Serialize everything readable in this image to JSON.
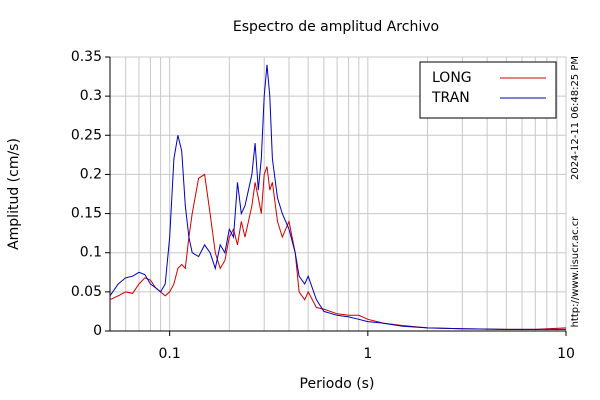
{
  "chart_data": {
    "type": "line",
    "title": "Espectro de amplitud Archivo",
    "x_label": "Periodo (s)",
    "y_label": "Amplitud (cm/s)",
    "side_texts": [
      "2024-12-11 06:48:25 PM",
      "http://www.lisucr.ac.cr"
    ],
    "x": [
      0.05,
      0.055,
      0.06,
      0.065,
      0.07,
      0.075,
      0.08,
      0.085,
      0.09,
      0.095,
      0.1,
      0.105,
      0.11,
      0.115,
      0.12,
      0.125,
      0.13,
      0.14,
      0.15,
      0.16,
      0.17,
      0.18,
      0.19,
      0.2,
      0.21,
      0.22,
      0.23,
      0.24,
      0.26,
      0.27,
      0.28,
      0.29,
      0.3,
      0.31,
      0.32,
      0.33,
      0.35,
      0.37,
      0.4,
      0.43,
      0.45,
      0.48,
      0.5,
      0.55,
      0.6,
      0.7,
      0.8,
      0.9,
      1,
      1.2,
      1.5,
      2,
      3,
      5,
      7,
      10
    ],
    "series": [
      {
        "name": "LONG",
        "color": "#cc0000",
        "values": [
          0.04,
          0.045,
          0.05,
          0.048,
          0.06,
          0.068,
          0.065,
          0.055,
          0.05,
          0.045,
          0.05,
          0.06,
          0.08,
          0.085,
          0.08,
          0.12,
          0.15,
          0.195,
          0.2,
          0.15,
          0.1,
          0.08,
          0.09,
          0.12,
          0.13,
          0.11,
          0.14,
          0.12,
          0.16,
          0.19,
          0.17,
          0.15,
          0.2,
          0.21,
          0.18,
          0.19,
          0.14,
          0.12,
          0.14,
          0.1,
          0.05,
          0.04,
          0.05,
          0.03,
          0.028,
          0.022,
          0.02,
          0.02,
          0.015,
          0.01,
          0.007,
          0.004,
          0.003,
          0.002,
          0.002,
          0.004
        ]
      },
      {
        "name": "TRAN",
        "color": "#0000bb",
        "values": [
          0.045,
          0.06,
          0.068,
          0.07,
          0.075,
          0.072,
          0.06,
          0.055,
          0.05,
          0.06,
          0.12,
          0.22,
          0.25,
          0.23,
          0.16,
          0.12,
          0.1,
          0.095,
          0.11,
          0.1,
          0.08,
          0.11,
          0.1,
          0.13,
          0.12,
          0.19,
          0.15,
          0.16,
          0.2,
          0.24,
          0.18,
          0.22,
          0.3,
          0.34,
          0.3,
          0.22,
          0.17,
          0.15,
          0.13,
          0.1,
          0.07,
          0.06,
          0.07,
          0.04,
          0.025,
          0.02,
          0.018,
          0.015,
          0.012,
          0.01,
          0.006,
          0.004,
          0.003,
          0.002,
          0.002,
          0.002
        ]
      }
    ],
    "xlim": [
      0.05,
      10
    ],
    "ylim": [
      0,
      0.35
    ],
    "xticks": [
      0.1,
      1,
      10
    ],
    "yticks": [
      0,
      0.05,
      0.1,
      0.15,
      0.2,
      0.25,
      0.3,
      0.35
    ],
    "xscale": "log",
    "grid": true,
    "legend": "upper right"
  }
}
